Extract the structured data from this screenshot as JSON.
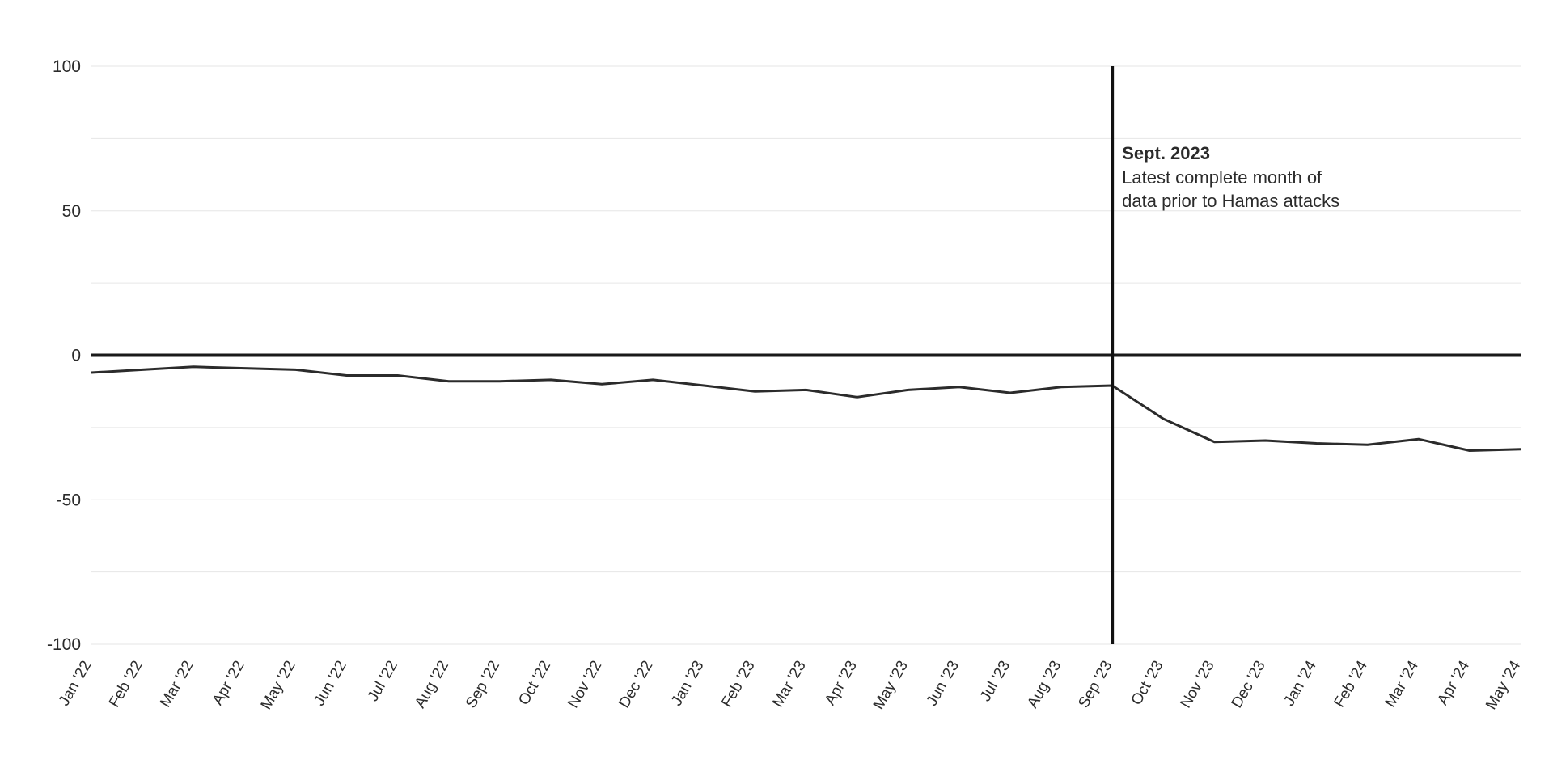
{
  "chart_data": {
    "type": "line",
    "x": [
      "Jan '22",
      "Feb '22",
      "Mar '22",
      "Apr '22",
      "May '22",
      "Jun '22",
      "Jul '22",
      "Aug '22",
      "Sep '22",
      "Oct '22",
      "Nov '22",
      "Dec '22",
      "Jan '23",
      "Feb '23",
      "Mar '23",
      "Apr '23",
      "May '23",
      "Jun '23",
      "Jul '23",
      "Aug '23",
      "Sep '23",
      "Oct '23",
      "Nov '23",
      "Dec '23",
      "Jan '24",
      "Feb '24",
      "Mar '24",
      "Apr '24",
      "May '24"
    ],
    "series": [
      {
        "values": [
          -6,
          -5,
          -4,
          -4.5,
          -5,
          -7,
          -7,
          -9,
          -9,
          -8.5,
          -10,
          -8.5,
          -10.5,
          -12.5,
          -12,
          -14.5,
          -12,
          -11,
          -13,
          -11,
          -10.5,
          -22,
          -30,
          -29.5,
          -30.5,
          -31,
          -29,
          -33,
          -32.5
        ]
      }
    ],
    "ylim": [
      -100,
      100
    ],
    "yticks": [
      -100,
      -50,
      0,
      50,
      100
    ],
    "ytick_labels": [
      "-100",
      "-50",
      "0",
      "50",
      "100"
    ],
    "grid": true,
    "line_color": "#2b2b2b",
    "grid_color": "#e6e6e6",
    "zero_line_color": "#1a1a1a",
    "annotation": {
      "x": "Sep '23",
      "title": "Sept. 2023",
      "lines": [
        "Latest complete month of",
        "data prior to Hamas attacks"
      ]
    }
  }
}
